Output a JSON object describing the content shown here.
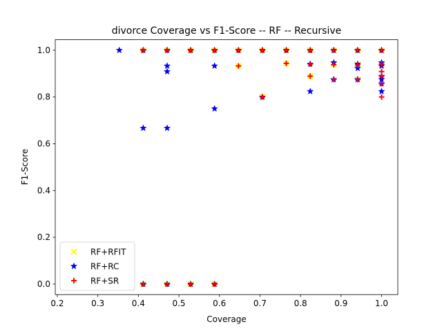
{
  "chart_data": {
    "type": "scatter",
    "title": "divorce Coverage vs F1-Score -- RF -- Recursive",
    "xlabel": "Coverage",
    "ylabel": "F1-Score",
    "xlim": [
      0.195,
      1.04
    ],
    "ylim": [
      -0.045,
      1.045
    ],
    "xticks": [
      0.2,
      0.3,
      0.4,
      0.5,
      0.6,
      0.7,
      0.8,
      0.9,
      1.0
    ],
    "xtick_labels": [
      "0.2",
      "0.3",
      "0.4",
      "0.5",
      "0.6",
      "0.7",
      "0.8",
      "0.9",
      "1.0"
    ],
    "yticks": [
      0.0,
      0.2,
      0.4,
      0.6,
      0.8,
      1.0
    ],
    "ytick_labels": [
      "0.0",
      "0.2",
      "0.4",
      "0.6",
      "0.8",
      "1.0"
    ],
    "grid": false,
    "legend_position": "lower-left",
    "series": [
      {
        "name": "RF+RFIT",
        "marker": "x",
        "color": "#ffff00",
        "points": [
          [
            0.412,
            1.0
          ],
          [
            0.471,
            1.0
          ],
          [
            0.529,
            1.0
          ],
          [
            0.588,
            1.0
          ],
          [
            0.647,
            1.0
          ],
          [
            0.706,
            1.0
          ],
          [
            0.765,
            1.0
          ],
          [
            0.824,
            1.0
          ],
          [
            0.882,
            1.0
          ],
          [
            0.941,
            1.0
          ],
          [
            1.0,
            1.0
          ],
          [
            0.647,
            0.933
          ],
          [
            0.706,
            0.8
          ],
          [
            0.765,
            0.944
          ],
          [
            0.824,
            0.889
          ],
          [
            0.882,
            0.938
          ],
          [
            0.941,
            0.875
          ],
          [
            0.941,
            0.938
          ],
          [
            1.0,
            0.938
          ],
          [
            0.412,
            0.0
          ],
          [
            0.471,
            0.0
          ],
          [
            0.529,
            0.0
          ],
          [
            0.588,
            0.0
          ]
        ]
      },
      {
        "name": "RF+RC",
        "marker": "star",
        "color": "#0000ff",
        "points": [
          [
            0.353,
            1.0
          ],
          [
            0.412,
            1.0
          ],
          [
            0.471,
            1.0
          ],
          [
            0.529,
            1.0
          ],
          [
            0.588,
            1.0
          ],
          [
            0.647,
            1.0
          ],
          [
            0.706,
            1.0
          ],
          [
            0.765,
            1.0
          ],
          [
            0.824,
            1.0
          ],
          [
            0.882,
            1.0
          ],
          [
            0.941,
            1.0
          ],
          [
            1.0,
            1.0
          ],
          [
            0.471,
            0.933
          ],
          [
            0.471,
            0.909
          ],
          [
            0.588,
            0.933
          ],
          [
            0.588,
            0.75
          ],
          [
            0.412,
            0.667
          ],
          [
            0.471,
            0.667
          ],
          [
            0.706,
            0.8
          ],
          [
            0.824,
            0.941
          ],
          [
            0.824,
            0.824
          ],
          [
            0.882,
            0.947
          ],
          [
            0.882,
            0.875
          ],
          [
            0.941,
            0.941
          ],
          [
            0.941,
            0.923
          ],
          [
            0.941,
            0.875
          ],
          [
            1.0,
            0.947
          ],
          [
            1.0,
            0.933
          ],
          [
            1.0,
            0.889
          ],
          [
            1.0,
            0.875
          ],
          [
            1.0,
            0.857
          ],
          [
            1.0,
            0.824
          ],
          [
            0.412,
            0.0
          ],
          [
            0.471,
            0.0
          ],
          [
            0.529,
            0.0
          ],
          [
            0.588,
            0.0
          ]
        ]
      },
      {
        "name": "RF+SR",
        "marker": "plus",
        "color": "#ff0000",
        "points": [
          [
            0.412,
            1.0
          ],
          [
            0.471,
            1.0
          ],
          [
            0.529,
            1.0
          ],
          [
            0.588,
            1.0
          ],
          [
            0.647,
            1.0
          ],
          [
            0.706,
            1.0
          ],
          [
            0.765,
            1.0
          ],
          [
            0.824,
            1.0
          ],
          [
            0.882,
            1.0
          ],
          [
            0.941,
            1.0
          ],
          [
            1.0,
            1.0
          ],
          [
            0.647,
            0.933
          ],
          [
            0.706,
            0.8
          ],
          [
            0.765,
            0.944
          ],
          [
            0.824,
            0.941
          ],
          [
            0.824,
            0.889
          ],
          [
            0.882,
            0.938
          ],
          [
            0.882,
            0.875
          ],
          [
            0.941,
            0.938
          ],
          [
            0.941,
            0.875
          ],
          [
            1.0,
            0.941
          ],
          [
            1.0,
            0.909
          ],
          [
            1.0,
            0.889
          ],
          [
            1.0,
            0.857
          ],
          [
            1.0,
            0.8
          ],
          [
            0.412,
            0.0
          ],
          [
            0.471,
            0.0
          ],
          [
            0.529,
            0.0
          ],
          [
            0.588,
            0.0
          ]
        ]
      }
    ]
  }
}
